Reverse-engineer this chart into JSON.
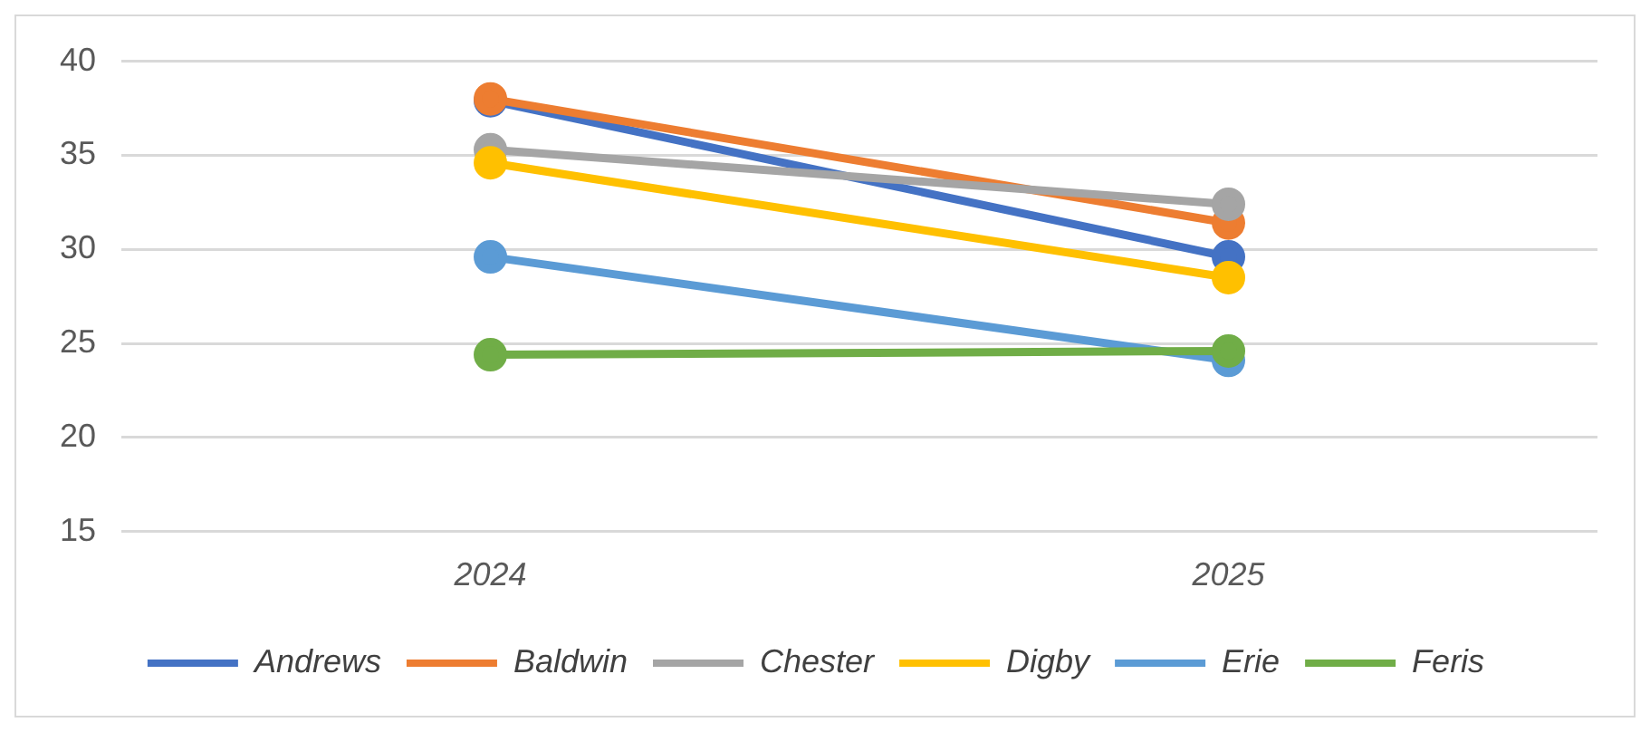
{
  "chart_data": {
    "type": "line",
    "categories": [
      "2024",
      "2025"
    ],
    "series": [
      {
        "name": "Andrews",
        "color": "#4472c4",
        "values": [
          37.9,
          29.6
        ]
      },
      {
        "name": "Baldwin",
        "color": "#ed7d31",
        "values": [
          38.0,
          31.4
        ]
      },
      {
        "name": "Chester",
        "color": "#a5a5a5",
        "values": [
          35.3,
          32.4
        ]
      },
      {
        "name": "Digby",
        "color": "#ffc000",
        "values": [
          34.6,
          28.5
        ]
      },
      {
        "name": "Erie",
        "color": "#5b9bd5",
        "values": [
          29.6,
          24.1
        ]
      },
      {
        "name": "Feris",
        "color": "#70ad47",
        "values": [
          24.4,
          24.6
        ]
      }
    ],
    "ylim": [
      15,
      40
    ],
    "yticks": [
      15,
      20,
      25,
      30,
      35,
      40
    ],
    "grid": "y",
    "legend": "bottom",
    "marker": "circle",
    "line_style": "solid"
  }
}
